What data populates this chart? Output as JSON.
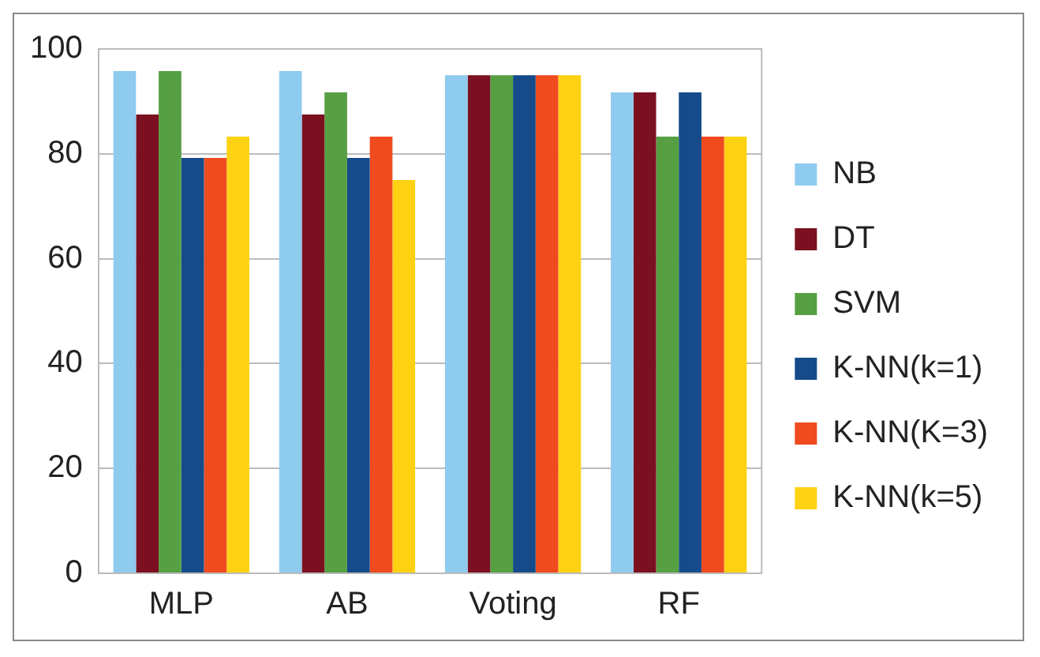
{
  "chart_data": {
    "type": "bar",
    "categories": [
      "MLP",
      "AB",
      "Voting",
      "RF"
    ],
    "series": [
      {
        "name": "NB",
        "color": "#8fcbee",
        "values": [
          95.8,
          95.8,
          95,
          91.7
        ]
      },
      {
        "name": "DT",
        "color": "#7b1120",
        "values": [
          87.5,
          87.5,
          95,
          91.7
        ]
      },
      {
        "name": "SVM",
        "color": "#56a043",
        "values": [
          95.8,
          91.7,
          95,
          83.3
        ]
      },
      {
        "name": "K-NN(k=1)",
        "color": "#154b8a",
        "values": [
          79.2,
          79.2,
          95,
          91.7
        ]
      },
      {
        "name": "K-NN(K=3)",
        "color": "#f04a1f",
        "values": [
          79.2,
          83.3,
          95,
          83.3
        ]
      },
      {
        "name": "K-NN(k=5)",
        "color": "#fdd213",
        "values": [
          83.3,
          75,
          95,
          83.3
        ]
      }
    ],
    "ylim": [
      0,
      100
    ],
    "yticks": [
      0,
      20,
      40,
      60,
      80,
      100
    ],
    "grid": "y",
    "legend": "right"
  }
}
